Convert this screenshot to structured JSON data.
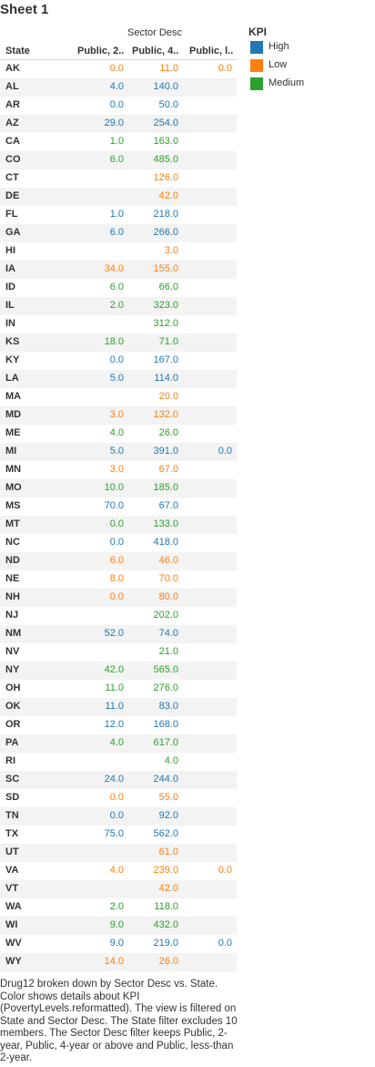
{
  "sheet_title": "Sheet 1",
  "caption": "Drug12 broken down by Sector Desc vs. State. Color shows details about KPI (PovertyLevels.reformatted). The view is filtered on State and Sector Desc. The State filter excludes 10 members. The Sector Desc filter keeps Public, 2-year, Public, 4-year or above and Public, less-than 2-year.",
  "legend": {
    "title": "KPI",
    "items": [
      {
        "label": "High",
        "color": "#1f77b4"
      },
      {
        "label": "Low",
        "color": "#ff7f0e"
      },
      {
        "label": "Medium",
        "color": "#2ca02c"
      }
    ]
  },
  "chart_data": {
    "type": "table",
    "column_group_label": "Sector Desc",
    "row_header": "State",
    "columns": [
      "Public, 2..",
      "Public, 4..",
      "Public, l.."
    ],
    "colors": {
      "High": "#1f77b4",
      "Low": "#ff7f0e",
      "Medium": "#2ca02c"
    },
    "rows": [
      {
        "state": "AK",
        "cells": [
          {
            "v": "0.0",
            "k": "Low"
          },
          {
            "v": "11.0",
            "k": "Low"
          },
          {
            "v": "0.0",
            "k": "Low"
          }
        ]
      },
      {
        "state": "AL",
        "cells": [
          {
            "v": "4.0",
            "k": "High"
          },
          {
            "v": "140.0",
            "k": "High"
          },
          null
        ]
      },
      {
        "state": "AR",
        "cells": [
          {
            "v": "0.0",
            "k": "High"
          },
          {
            "v": "50.0",
            "k": "High"
          },
          null
        ]
      },
      {
        "state": "AZ",
        "cells": [
          {
            "v": "29.0",
            "k": "High"
          },
          {
            "v": "254.0",
            "k": "High"
          },
          null
        ]
      },
      {
        "state": "CA",
        "cells": [
          {
            "v": "1.0",
            "k": "Medium"
          },
          {
            "v": "163.0",
            "k": "Medium"
          },
          null
        ]
      },
      {
        "state": "CO",
        "cells": [
          {
            "v": "6.0",
            "k": "Medium"
          },
          {
            "v": "485.0",
            "k": "Medium"
          },
          null
        ]
      },
      {
        "state": "CT",
        "cells": [
          null,
          {
            "v": "126.0",
            "k": "Low"
          },
          null
        ]
      },
      {
        "state": "DE",
        "cells": [
          null,
          {
            "v": "42.0",
            "k": "Low"
          },
          null
        ]
      },
      {
        "state": "FL",
        "cells": [
          {
            "v": "1.0",
            "k": "High"
          },
          {
            "v": "218.0",
            "k": "High"
          },
          null
        ]
      },
      {
        "state": "GA",
        "cells": [
          {
            "v": "6.0",
            "k": "High"
          },
          {
            "v": "266.0",
            "k": "High"
          },
          null
        ]
      },
      {
        "state": "HI",
        "cells": [
          null,
          {
            "v": "3.0",
            "k": "Low"
          },
          null
        ]
      },
      {
        "state": "IA",
        "cells": [
          {
            "v": "34.0",
            "k": "Low"
          },
          {
            "v": "155.0",
            "k": "Low"
          },
          null
        ]
      },
      {
        "state": "ID",
        "cells": [
          {
            "v": "6.0",
            "k": "Medium"
          },
          {
            "v": "66.0",
            "k": "Medium"
          },
          null
        ]
      },
      {
        "state": "IL",
        "cells": [
          {
            "v": "2.0",
            "k": "Medium"
          },
          {
            "v": "323.0",
            "k": "Medium"
          },
          null
        ]
      },
      {
        "state": "IN",
        "cells": [
          null,
          {
            "v": "312.0",
            "k": "Medium"
          },
          null
        ]
      },
      {
        "state": "KS",
        "cells": [
          {
            "v": "18.0",
            "k": "Medium"
          },
          {
            "v": "71.0",
            "k": "Medium"
          },
          null
        ]
      },
      {
        "state": "KY",
        "cells": [
          {
            "v": "0.0",
            "k": "High"
          },
          {
            "v": "167.0",
            "k": "High"
          },
          null
        ]
      },
      {
        "state": "LA",
        "cells": [
          {
            "v": "5.0",
            "k": "High"
          },
          {
            "v": "114.0",
            "k": "High"
          },
          null
        ]
      },
      {
        "state": "MA",
        "cells": [
          null,
          {
            "v": "20.0",
            "k": "Low"
          },
          null
        ]
      },
      {
        "state": "MD",
        "cells": [
          {
            "v": "3.0",
            "k": "Low"
          },
          {
            "v": "132.0",
            "k": "Low"
          },
          null
        ]
      },
      {
        "state": "ME",
        "cells": [
          {
            "v": "4.0",
            "k": "Medium"
          },
          {
            "v": "26.0",
            "k": "Medium"
          },
          null
        ]
      },
      {
        "state": "MI",
        "cells": [
          {
            "v": "5.0",
            "k": "High"
          },
          {
            "v": "391.0",
            "k": "High"
          },
          {
            "v": "0.0",
            "k": "High"
          }
        ]
      },
      {
        "state": "MN",
        "cells": [
          {
            "v": "3.0",
            "k": "Low"
          },
          {
            "v": "67.0",
            "k": "Low"
          },
          null
        ]
      },
      {
        "state": "MO",
        "cells": [
          {
            "v": "10.0",
            "k": "Medium"
          },
          {
            "v": "185.0",
            "k": "Medium"
          },
          null
        ]
      },
      {
        "state": "MS",
        "cells": [
          {
            "v": "70.0",
            "k": "High"
          },
          {
            "v": "67.0",
            "k": "High"
          },
          null
        ]
      },
      {
        "state": "MT",
        "cells": [
          {
            "v": "0.0",
            "k": "Medium"
          },
          {
            "v": "133.0",
            "k": "Medium"
          },
          null
        ]
      },
      {
        "state": "NC",
        "cells": [
          {
            "v": "0.0",
            "k": "High"
          },
          {
            "v": "418.0",
            "k": "High"
          },
          null
        ]
      },
      {
        "state": "ND",
        "cells": [
          {
            "v": "6.0",
            "k": "Low"
          },
          {
            "v": "46.0",
            "k": "Low"
          },
          null
        ]
      },
      {
        "state": "NE",
        "cells": [
          {
            "v": "8.0",
            "k": "Low"
          },
          {
            "v": "70.0",
            "k": "Low"
          },
          null
        ]
      },
      {
        "state": "NH",
        "cells": [
          {
            "v": "0.0",
            "k": "Low"
          },
          {
            "v": "80.0",
            "k": "Low"
          },
          null
        ]
      },
      {
        "state": "NJ",
        "cells": [
          null,
          {
            "v": "202.0",
            "k": "Medium"
          },
          null
        ]
      },
      {
        "state": "NM",
        "cells": [
          {
            "v": "52.0",
            "k": "High"
          },
          {
            "v": "74.0",
            "k": "High"
          },
          null
        ]
      },
      {
        "state": "NV",
        "cells": [
          null,
          {
            "v": "21.0",
            "k": "Medium"
          },
          null
        ]
      },
      {
        "state": "NY",
        "cells": [
          {
            "v": "42.0",
            "k": "Medium"
          },
          {
            "v": "565.0",
            "k": "Medium"
          },
          null
        ]
      },
      {
        "state": "OH",
        "cells": [
          {
            "v": "11.0",
            "k": "Medium"
          },
          {
            "v": "276.0",
            "k": "Medium"
          },
          null
        ]
      },
      {
        "state": "OK",
        "cells": [
          {
            "v": "11.0",
            "k": "High"
          },
          {
            "v": "83.0",
            "k": "High"
          },
          null
        ]
      },
      {
        "state": "OR",
        "cells": [
          {
            "v": "12.0",
            "k": "High"
          },
          {
            "v": "168.0",
            "k": "High"
          },
          null
        ]
      },
      {
        "state": "PA",
        "cells": [
          {
            "v": "4.0",
            "k": "Medium"
          },
          {
            "v": "617.0",
            "k": "Medium"
          },
          null
        ]
      },
      {
        "state": "RI",
        "cells": [
          null,
          {
            "v": "4.0",
            "k": "Medium"
          },
          null
        ]
      },
      {
        "state": "SC",
        "cells": [
          {
            "v": "24.0",
            "k": "High"
          },
          {
            "v": "244.0",
            "k": "High"
          },
          null
        ]
      },
      {
        "state": "SD",
        "cells": [
          {
            "v": "0.0",
            "k": "Low"
          },
          {
            "v": "55.0",
            "k": "Low"
          },
          null
        ]
      },
      {
        "state": "TN",
        "cells": [
          {
            "v": "0.0",
            "k": "High"
          },
          {
            "v": "92.0",
            "k": "High"
          },
          null
        ]
      },
      {
        "state": "TX",
        "cells": [
          {
            "v": "75.0",
            "k": "High"
          },
          {
            "v": "562.0",
            "k": "High"
          },
          null
        ]
      },
      {
        "state": "UT",
        "cells": [
          null,
          {
            "v": "61.0",
            "k": "Low"
          },
          null
        ]
      },
      {
        "state": "VA",
        "cells": [
          {
            "v": "4.0",
            "k": "Low"
          },
          {
            "v": "239.0",
            "k": "Low"
          },
          {
            "v": "0.0",
            "k": "Low"
          }
        ]
      },
      {
        "state": "VT",
        "cells": [
          null,
          {
            "v": "42.0",
            "k": "Low"
          },
          null
        ]
      },
      {
        "state": "WA",
        "cells": [
          {
            "v": "2.0",
            "k": "Medium"
          },
          {
            "v": "118.0",
            "k": "Medium"
          },
          null
        ]
      },
      {
        "state": "WI",
        "cells": [
          {
            "v": "9.0",
            "k": "Medium"
          },
          {
            "v": "432.0",
            "k": "Medium"
          },
          null
        ]
      },
      {
        "state": "WV",
        "cells": [
          {
            "v": "9.0",
            "k": "High"
          },
          {
            "v": "219.0",
            "k": "High"
          },
          {
            "v": "0.0",
            "k": "High"
          }
        ]
      },
      {
        "state": "WY",
        "cells": [
          {
            "v": "14.0",
            "k": "Low"
          },
          {
            "v": "26.0",
            "k": "Low"
          },
          null
        ]
      }
    ]
  }
}
